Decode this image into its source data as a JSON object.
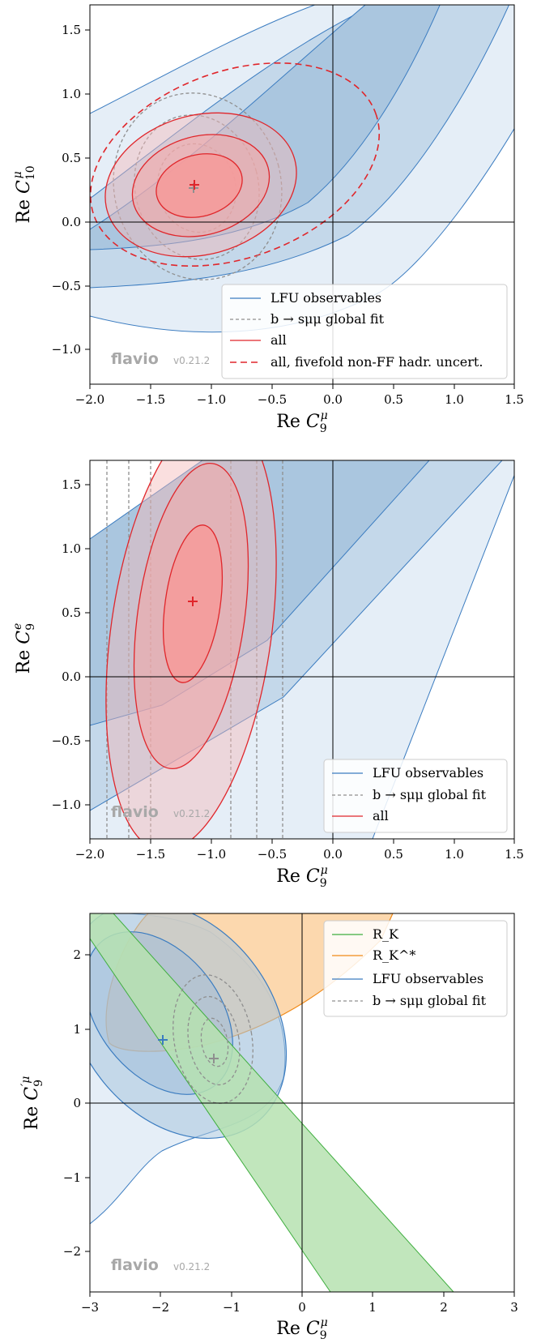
{
  "chart_data": [
    {
      "type": "contour",
      "xlabel": "Re C_9^μ",
      "ylabel": "Re C_10^μ",
      "xticks": [
        "−2.0",
        "−1.5",
        "−1.0",
        "−0.5",
        "0.0",
        "0.5",
        "1.0",
        "1.5"
      ],
      "yticks": [
        "−1.0",
        "−0.5",
        "0.0",
        "0.5",
        "1.0",
        "1.5"
      ],
      "xlim": [
        -2.0,
        1.5
      ],
      "ylim": [
        -1.28,
        1.7
      ],
      "legend": [
        "LFU observables",
        "b → sμμ global fit",
        "all",
        "all, fivefold non-FF hadr. uncert."
      ],
      "best_fit_points": [
        {
          "series": "all",
          "x": -1.14,
          "y": 0.29
        },
        {
          "series": "b → sμμ global fit",
          "x": -1.15,
          "y": 0.27
        }
      ],
      "watermark": {
        "name": "flavio",
        "version": "v0.21.2"
      }
    },
    {
      "type": "contour",
      "xlabel": "Re C_9^μ",
      "ylabel": "Re C_9^e",
      "xticks": [
        "−2.0",
        "−1.5",
        "−1.0",
        "−0.5",
        "0.0",
        "0.5",
        "1.0",
        "1.5"
      ],
      "yticks": [
        "−1.0",
        "−0.5",
        "0.0",
        "0.5",
        "1.0",
        "1.5"
      ],
      "xlim": [
        -2.0,
        1.5
      ],
      "ylim": [
        -1.28,
        1.7
      ],
      "legend": [
        "LFU observables",
        "b → sμμ global fit",
        "all"
      ],
      "best_fit_points": [
        {
          "series": "all",
          "x": -1.15,
          "y": 0.6
        }
      ],
      "watermark": {
        "name": "flavio",
        "version": "v0.21.2"
      }
    },
    {
      "type": "contour",
      "xlabel": "Re C_9^μ",
      "ylabel": "Re C_9^{′μ}",
      "xticks": [
        "−3",
        "−2",
        "−1",
        "0",
        "1",
        "2",
        "3"
      ],
      "yticks": [
        "−2",
        "−1",
        "0",
        "1",
        "2"
      ],
      "xlim": [
        -3,
        3
      ],
      "ylim": [
        -2.55,
        2.55
      ],
      "legend": [
        "R_K",
        "R_K^*",
        "LFU observables",
        "b → sμμ global fit"
      ],
      "best_fit_points": [
        {
          "series": "LFU observables",
          "x": -1.97,
          "y": 0.85
        },
        {
          "series": "b → sμμ global fit",
          "x": -1.25,
          "y": 0.6
        }
      ],
      "watermark": {
        "name": "flavio",
        "version": "v0.21.2"
      }
    }
  ],
  "colors": {
    "lfu": "#3b7cc0",
    "lfu_fill_1": "#e5eef7",
    "lfu_fill_2": "#c4d8ea",
    "lfu_fill_3": "#aac6df",
    "all": "#e0262b",
    "global": "#8f8f8f",
    "rk": "#3fae3f",
    "rks": "#f08a18"
  }
}
